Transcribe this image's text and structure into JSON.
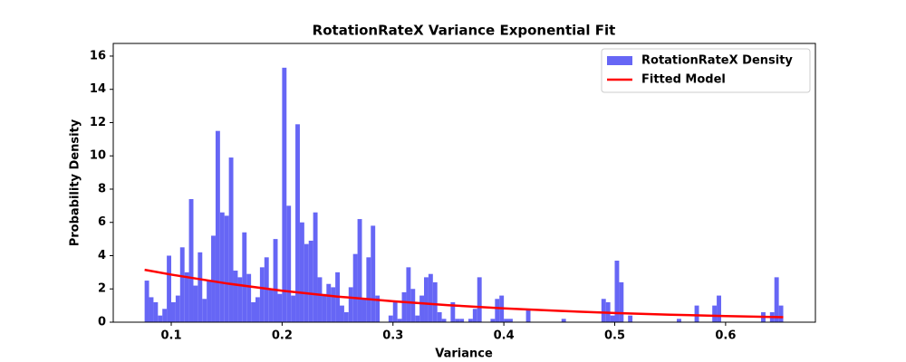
{
  "chart_data": {
    "type": "histogram",
    "title": "RotationRateX Variance Exponential Fit",
    "xlabel": "Variance",
    "ylabel": "Probability Density",
    "xlim": [
      0.0477,
      0.681
    ],
    "ylim": [
      0,
      16.76
    ],
    "xticks": [
      0.1,
      0.2,
      0.3,
      0.4,
      0.5,
      0.6
    ],
    "yticks": [
      0,
      2,
      4,
      6,
      8,
      10,
      12,
      14,
      16
    ],
    "legend": "upper right",
    "bins": [
      0.076,
      0.08,
      0.084,
      0.088,
      0.092,
      0.096,
      0.1,
      0.104,
      0.108,
      0.112,
      0.116,
      0.12,
      0.124,
      0.128,
      0.132,
      0.136,
      0.14,
      0.144,
      0.148,
      0.152,
      0.156,
      0.16,
      0.164,
      0.168,
      0.172,
      0.176,
      0.18,
      0.184,
      0.188,
      0.192,
      0.196,
      0.2,
      0.204,
      0.208,
      0.212,
      0.216,
      0.22,
      0.224,
      0.228,
      0.232,
      0.236,
      0.24,
      0.244,
      0.248,
      0.252,
      0.256,
      0.26,
      0.264,
      0.268,
      0.272,
      0.276,
      0.28,
      0.284,
      0.288,
      0.292,
      0.296,
      0.3,
      0.304,
      0.308,
      0.312,
      0.316,
      0.32,
      0.324,
      0.328,
      0.332,
      0.336,
      0.34,
      0.344,
      0.348,
      0.352,
      0.356,
      0.36,
      0.364,
      0.368,
      0.372,
      0.376,
      0.38,
      0.384,
      0.388,
      0.392,
      0.396,
      0.4,
      0.404,
      0.408,
      0.412,
      0.416,
      0.42,
      0.424,
      0.428,
      0.432,
      0.436,
      0.44,
      0.444,
      0.448,
      0.452,
      0.456,
      0.46,
      0.464,
      0.468,
      0.472,
      0.476,
      0.48,
      0.484,
      0.488,
      0.492,
      0.496,
      0.5,
      0.504,
      0.508,
      0.512,
      0.516,
      0.52,
      0.524,
      0.528,
      0.532,
      0.536,
      0.54,
      0.544,
      0.548,
      0.552,
      0.556,
      0.56,
      0.564,
      0.568,
      0.572,
      0.576,
      0.58,
      0.584,
      0.588,
      0.592,
      0.596,
      0.6,
      0.604,
      0.608,
      0.612,
      0.616,
      0.62,
      0.624,
      0.628,
      0.632,
      0.636,
      0.64,
      0.644,
      0.648,
      0.652
    ],
    "series": [
      {
        "name": "RotationRateX Density",
        "type": "histogram",
        "color": "#6666f5",
        "values": [
          2.5,
          1.5,
          1.2,
          0.4,
          0.8,
          4.0,
          1.2,
          1.6,
          4.5,
          3,
          7.4,
          2.2,
          4.2,
          1.4,
          2.5,
          5.2,
          11.5,
          6.6,
          6.4,
          9.9,
          3.1,
          2.7,
          5.4,
          2.9,
          1.2,
          1.5,
          3.3,
          3.9,
          2,
          5,
          1.7,
          15.3,
          7,
          1.6,
          11.9,
          6,
          4.7,
          4.9,
          6.6,
          2.7,
          1.7,
          2.3,
          2.1,
          3,
          1,
          0.6,
          2.1,
          4.1,
          6.2,
          1.4,
          3.9,
          5.8,
          1.6,
          0,
          0,
          0.4,
          1.2,
          0.2,
          1.8,
          3.3,
          2,
          0.4,
          1.6,
          2.7,
          2.9,
          2.4,
          0.6,
          0.2,
          0,
          1.2,
          0.2,
          0.2,
          0,
          0.2,
          0.8,
          2.7,
          0,
          0,
          0.2,
          1.4,
          1.6,
          0.2,
          0.2,
          0,
          0,
          0,
          0.8,
          0,
          0,
          0,
          0,
          0,
          0,
          0,
          0.2,
          0,
          0,
          0,
          0,
          0,
          0,
          0,
          0,
          1.4,
          1.2,
          0.4,
          3.7,
          2.4,
          0,
          0.4,
          0,
          0,
          0,
          0,
          0,
          0,
          0,
          0,
          0,
          0,
          0.2,
          0,
          0,
          0,
          1,
          0,
          0,
          0,
          1,
          1.6,
          0,
          0,
          0,
          0,
          0,
          0,
          0,
          0,
          0,
          0.6,
          0,
          0.6,
          2.7,
          1
        ]
      },
      {
        "name": "Fitted Model",
        "type": "line",
        "color": "#ff0000",
        "x": [
          0.076,
          0.1,
          0.15,
          0.2,
          0.25,
          0.3,
          0.35,
          0.4,
          0.45,
          0.5,
          0.55,
          0.6,
          0.652
        ],
        "values": [
          3.15,
          2.86,
          2.33,
          1.89,
          1.54,
          1.26,
          1.02,
          0.83,
          0.68,
          0.55,
          0.45,
          0.37,
          0.3
        ]
      }
    ]
  }
}
